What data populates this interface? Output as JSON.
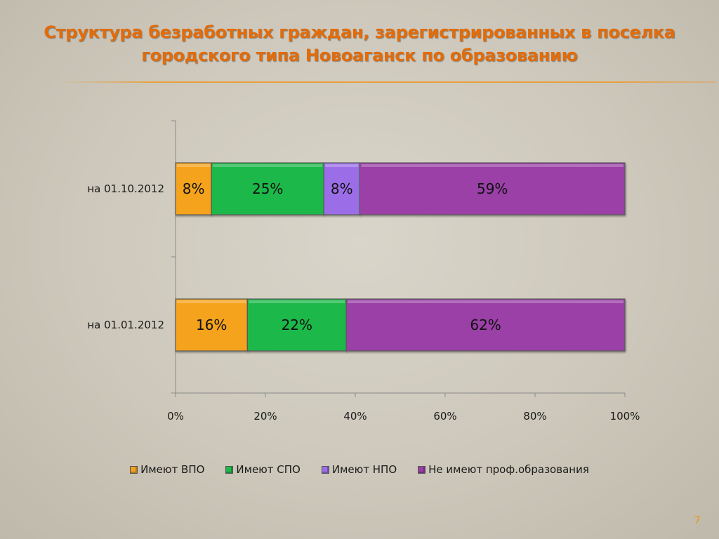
{
  "slide": {
    "title": "Структура безработных граждан, зарегистрированных в поселка городского типа Новоаганск по образованию",
    "page_number": "7"
  },
  "chart_data": {
    "type": "bar",
    "orientation": "horizontal",
    "stacked": "percent",
    "title": "",
    "xlabel": "",
    "ylabel": "",
    "xlim": [
      0,
      100
    ],
    "x_ticks": [
      "0%",
      "20%",
      "40%",
      "60%",
      "80%",
      "100%"
    ],
    "categories": [
      "на 01.10.2012",
      "на 01.01.2012"
    ],
    "series": [
      {
        "name": "Имеют ВПО",
        "color": "#f5a31c",
        "values": [
          8,
          16
        ],
        "labels": [
          "8%",
          "16%"
        ]
      },
      {
        "name": "Имеют СПО",
        "color": "#1eb84a",
        "values": [
          25,
          22
        ],
        "labels": [
          "25%",
          "22%"
        ]
      },
      {
        "name": "Имеют НПО",
        "color": "#9b6ee8",
        "values": [
          8,
          0
        ],
        "labels": [
          "8%",
          ""
        ]
      },
      {
        "name": "Не имеют проф.образования",
        "color": "#9a3fa6",
        "values": [
          59,
          62
        ],
        "labels": [
          "59%",
          "62%"
        ]
      }
    ],
    "grid": false,
    "legend_position": "bottom"
  }
}
